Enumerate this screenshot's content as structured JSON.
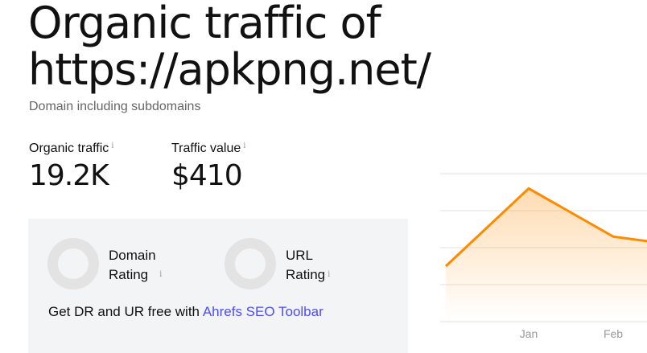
{
  "header": {
    "title": "Organic traffic of https://apkpng.net/",
    "subtitle": "Domain including subdomains"
  },
  "metrics": [
    {
      "label": "Organic traffic",
      "value": "19.2K",
      "info_icon": "info-icon"
    },
    {
      "label": "Traffic value",
      "value": "$410",
      "info_icon": "info-icon"
    }
  ],
  "ratings": {
    "domain_line1": "Domain",
    "domain_line2": "Rating",
    "url_line1": "URL",
    "url_line2": "Rating"
  },
  "promo": {
    "text": "Get DR and UR free with ",
    "link": "Ahrefs SEO Toolbar",
    "link_color": "#4c4cff"
  },
  "info_glyph": "i",
  "chart_data": {
    "type": "area",
    "x_ticks": [
      "Jan",
      "Feb"
    ],
    "points": [
      {
        "x": "Dec",
        "y": 1.5
      },
      {
        "x": "Jan",
        "y": 3.6
      },
      {
        "x": "Feb",
        "y": 2.3
      },
      {
        "x": "Mar",
        "y": 2.0
      }
    ],
    "y_axis_labels": "none",
    "grid": true,
    "color": "#ff8a00"
  }
}
